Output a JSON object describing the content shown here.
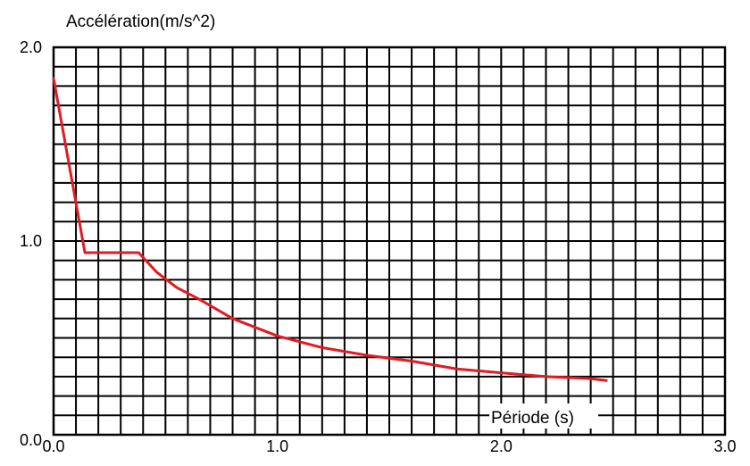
{
  "chart_data": {
    "type": "line",
    "title": "",
    "ylabel": "Accélération(m/s^2)",
    "xlabel": "Période (s)",
    "xlim": [
      0.0,
      3.0
    ],
    "ylim": [
      0.0,
      2.0
    ],
    "x_ticks": [
      "0.0",
      "1.0",
      "2.0",
      "3.0"
    ],
    "y_ticks": [
      "0.0",
      "1.0",
      "2.0"
    ],
    "x_minor_step": 0.1,
    "y_minor_step": 0.1,
    "grid": true,
    "line_color": "#e01b24",
    "series": [
      {
        "x": [
          0.0,
          0.14,
          0.38,
          0.46,
          0.55,
          0.65,
          0.8,
          1.0,
          1.2,
          1.4,
          1.6,
          1.8,
          2.0,
          2.2,
          2.4,
          2.47
        ],
        "y": [
          1.84,
          0.94,
          0.94,
          0.84,
          0.76,
          0.7,
          0.6,
          0.51,
          0.45,
          0.41,
          0.38,
          0.34,
          0.32,
          0.3,
          0.29,
          0.28
        ]
      }
    ]
  }
}
